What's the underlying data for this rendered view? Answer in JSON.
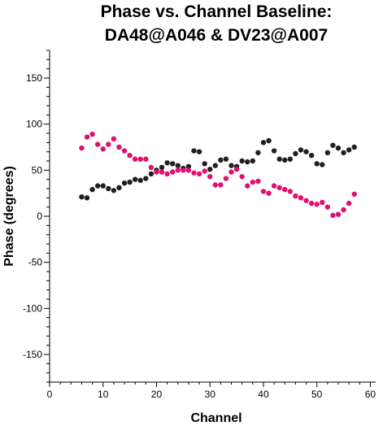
{
  "chart_data": {
    "type": "scatter",
    "title_lines": [
      "Phase vs. Channel Baseline:",
      "DA48@A046 & DV23@A007"
    ],
    "xlabel": "Channel",
    "ylabel": "Phase (degrees)",
    "xlim": [
      0,
      61
    ],
    "ylim": [
      -180,
      180
    ],
    "x_ticks": [
      0,
      10,
      20,
      30,
      40,
      50,
      60
    ],
    "y_ticks": [
      -150,
      -100,
      -50,
      0,
      50,
      100,
      150
    ],
    "x_tick_labels": [
      "0",
      "10",
      "20",
      "30",
      "40",
      "50",
      "60"
    ],
    "y_tick_labels": [
      "-150",
      "-100",
      "-50",
      "0",
      "50",
      "100",
      "150"
    ],
    "grid": false,
    "colors": {
      "series_1": "#1f1f1f",
      "series_2": "#e0106e"
    },
    "series": [
      {
        "color_key": "series_1",
        "points": [
          [
            6,
            21
          ],
          [
            7,
            20
          ],
          [
            8,
            29
          ],
          [
            9,
            33
          ],
          [
            10,
            33
          ],
          [
            11,
            30
          ],
          [
            12,
            28
          ],
          [
            13,
            31
          ],
          [
            14,
            36
          ],
          [
            15,
            37
          ],
          [
            16,
            40
          ],
          [
            17,
            39
          ],
          [
            18,
            41
          ],
          [
            19,
            46
          ],
          [
            20,
            50
          ],
          [
            21,
            53
          ],
          [
            22,
            58
          ],
          [
            23,
            57
          ],
          [
            24,
            55
          ],
          [
            25,
            52
          ],
          [
            26,
            54
          ],
          [
            27,
            71
          ],
          [
            28,
            70
          ],
          [
            29,
            57
          ],
          [
            30,
            51
          ],
          [
            31,
            55
          ],
          [
            32,
            61
          ],
          [
            33,
            62
          ],
          [
            34,
            55
          ],
          [
            35,
            54
          ],
          [
            36,
            60
          ],
          [
            37,
            59
          ],
          [
            38,
            60
          ],
          [
            39,
            69
          ],
          [
            40,
            80
          ],
          [
            41,
            82
          ],
          [
            42,
            71
          ],
          [
            43,
            62
          ],
          [
            44,
            61
          ],
          [
            45,
            62
          ],
          [
            46,
            68
          ],
          [
            47,
            72
          ],
          [
            48,
            70
          ],
          [
            49,
            66
          ],
          [
            50,
            57
          ],
          [
            51,
            56
          ],
          [
            52,
            69
          ],
          [
            53,
            77
          ],
          [
            54,
            74
          ],
          [
            55,
            69
          ],
          [
            56,
            72
          ],
          [
            57,
            75
          ]
        ]
      },
      {
        "color_key": "series_2",
        "points": [
          [
            6,
            74
          ],
          [
            7,
            86
          ],
          [
            8,
            89
          ],
          [
            9,
            78
          ],
          [
            10,
            73
          ],
          [
            11,
            78
          ],
          [
            12,
            84
          ],
          [
            13,
            75
          ],
          [
            14,
            71
          ],
          [
            15,
            66
          ],
          [
            16,
            62
          ],
          [
            17,
            62
          ],
          [
            18,
            62
          ],
          [
            19,
            53
          ],
          [
            20,
            48
          ],
          [
            21,
            48
          ],
          [
            22,
            46
          ],
          [
            23,
            48
          ],
          [
            24,
            50
          ],
          [
            25,
            50
          ],
          [
            26,
            50
          ],
          [
            27,
            47
          ],
          [
            28,
            46
          ],
          [
            29,
            49
          ],
          [
            30,
            43
          ],
          [
            31,
            34
          ],
          [
            32,
            34
          ],
          [
            33,
            41
          ],
          [
            34,
            48
          ],
          [
            35,
            51
          ],
          [
            36,
            43
          ],
          [
            37,
            33
          ],
          [
            38,
            37
          ],
          [
            39,
            38
          ],
          [
            40,
            27
          ],
          [
            41,
            25
          ],
          [
            42,
            33
          ],
          [
            43,
            31
          ],
          [
            44,
            29
          ],
          [
            45,
            27
          ],
          [
            46,
            22
          ],
          [
            47,
            20
          ],
          [
            48,
            17
          ],
          [
            49,
            14
          ],
          [
            50,
            13
          ],
          [
            51,
            15
          ],
          [
            52,
            10
          ],
          [
            53,
            1
          ],
          [
            54,
            2
          ],
          [
            55,
            7
          ],
          [
            56,
            14
          ],
          [
            57,
            24
          ]
        ]
      }
    ]
  }
}
